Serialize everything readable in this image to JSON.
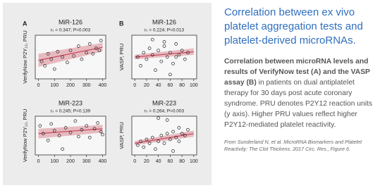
{
  "heading": "Correlation between ex vivo platelet aggregation tests and platelet-derived microRNAs.",
  "caption": {
    "bold": "Correlation between microRNA levels and results of VerifyNow test (A) and the VASP assay (B)",
    "text": " in patients on dual antiplatelet therapy for 30 days post acute coronary syndrome. PRU denotes P2Y12 reaction units (y axis). Higher PRU values reflect higher P2Y12-mediated platelet reactivity."
  },
  "source": "From Sunderland N, et al. MicroRNA Biomarkers and Platelet Reactivity: The Clot Thickens. 2017 Circ. Res., Figure 6.",
  "chart_data": [
    {
      "type": "scatter",
      "panel": "A",
      "title": "MiR-126",
      "subtitle": "rₛ = 0.347; P=0.003",
      "y_label": "VerifyNow P2Y₁₂, PRU",
      "color": "#c8485a",
      "x": [
        20,
        40,
        60,
        80,
        100,
        120,
        150,
        180,
        200,
        220,
        250,
        270,
        300,
        320,
        340,
        360,
        380,
        390
      ],
      "values": [
        160,
        120,
        230,
        180,
        90,
        250,
        200,
        150,
        260,
        210,
        300,
        180,
        240,
        320,
        230,
        280,
        260,
        350
      ],
      "fit": {
        "x": [
          0,
          400
        ],
        "y": [
          170,
          290
        ],
        "lower": [
          110,
          250
        ],
        "upper": [
          230,
          330
        ]
      },
      "xlim": [
        -20,
        420
      ],
      "xticks": [
        0,
        100,
        200,
        300,
        400
      ],
      "ylim": [
        0,
        400
      ]
    },
    {
      "type": "scatter",
      "panel": "B",
      "title": "MiR-126",
      "subtitle": "rₛ = 0.224; P=0.013",
      "y_label": "VASP, PRU",
      "color": "#c8485a",
      "x": [
        5,
        10,
        15,
        20,
        25,
        30,
        35,
        40,
        45,
        50,
        55,
        60,
        65,
        70,
        75,
        80,
        85,
        90,
        30,
        50,
        60,
        70
      ],
      "values": [
        50,
        30,
        60,
        45,
        70,
        55,
        20,
        65,
        40,
        75,
        50,
        60,
        35,
        80,
        55,
        65,
        45,
        60,
        90,
        85,
        10,
        50
      ],
      "fit": {
        "x": [
          0,
          100
        ],
        "y": [
          50,
          62
        ],
        "lower": [
          45,
          55
        ],
        "upper": [
          55,
          70
        ]
      },
      "xlim": [
        -5,
        105
      ],
      "xticks": [
        0,
        20,
        40,
        60,
        80,
        100
      ],
      "ylim": [
        0,
        100
      ]
    },
    {
      "type": "scatter",
      "title": "MiR-223",
      "subtitle": "rₛ = 0.245; P=0.139",
      "y_label": "VerifyNow P2Y₁₂, PRU",
      "color": "#c8485a",
      "x": [
        10,
        30,
        60,
        80,
        100,
        130,
        150,
        170,
        200,
        230,
        250,
        270,
        300,
        320,
        350,
        370,
        390,
        400
      ],
      "values": [
        300,
        220,
        150,
        320,
        250,
        200,
        60,
        280,
        230,
        350,
        190,
        260,
        300,
        180,
        270,
        330,
        240,
        210
      ],
      "fit": {
        "x": [
          0,
          400
        ],
        "y": [
          220,
          270
        ],
        "lower": [
          170,
          230
        ],
        "upper": [
          270,
          310
        ]
      },
      "xlim": [
        -20,
        420
      ],
      "xticks": [
        0,
        100,
        200,
        300,
        400
      ],
      "ylim": [
        0,
        400
      ]
    },
    {
      "type": "scatter",
      "title": "MiR-223",
      "subtitle": "rₛ = 0.264; P=0.003",
      "y_label": "VASP, PRU",
      "color": "#c8485a",
      "x": [
        5,
        10,
        15,
        20,
        25,
        30,
        35,
        40,
        45,
        50,
        55,
        60,
        65,
        70,
        75,
        80,
        85,
        90,
        40,
        55,
        65,
        75
      ],
      "values": [
        25,
        35,
        20,
        40,
        30,
        45,
        15,
        35,
        50,
        30,
        55,
        40,
        60,
        45,
        35,
        55,
        50,
        65,
        95,
        90,
        10,
        70
      ],
      "fit": {
        "x": [
          0,
          100
        ],
        "y": [
          30,
          55
        ],
        "lower": [
          25,
          47
        ],
        "upper": [
          36,
          63
        ]
      },
      "xlim": [
        -5,
        105
      ],
      "xticks": [
        0,
        20,
        40,
        60,
        80,
        100
      ],
      "ylim": [
        0,
        100
      ]
    }
  ]
}
